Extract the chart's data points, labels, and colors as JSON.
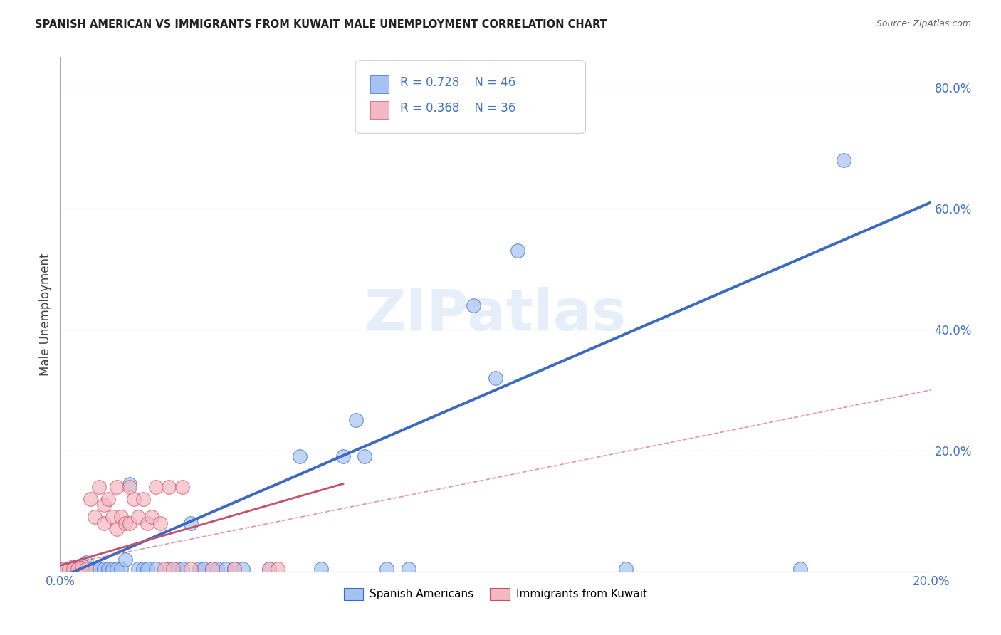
{
  "title": "SPANISH AMERICAN VS IMMIGRANTS FROM KUWAIT MALE UNEMPLOYMENT CORRELATION CHART",
  "source": "Source: ZipAtlas.com",
  "ylabel": "Male Unemployment",
  "xlim": [
    0.0,
    0.2
  ],
  "ylim": [
    0.0,
    0.85
  ],
  "xticks": [
    0.0,
    0.05,
    0.1,
    0.15,
    0.2
  ],
  "xtick_labels": [
    "0.0%",
    "",
    "",
    "",
    "20.0%"
  ],
  "yticks": [
    0.0,
    0.2,
    0.4,
    0.6,
    0.8
  ],
  "ytick_labels": [
    "",
    "20.0%",
    "40.0%",
    "60.0%",
    "80.0%"
  ],
  "blue_color": "#a4c2f4",
  "pink_color": "#f4b8c1",
  "trend_blue": "#3c6abf",
  "trend_pink": "#c9506a",
  "axis_label_color": "#4472c4",
  "legend_R_blue": "0.728",
  "legend_N_blue": "46",
  "legend_R_pink": "0.368",
  "legend_N_pink": "36",
  "watermark": "ZIPatlas",
  "blue_scatter": [
    [
      0.001,
      0.005
    ],
    [
      0.002,
      0.005
    ],
    [
      0.003,
      0.008
    ],
    [
      0.004,
      0.003
    ],
    [
      0.005,
      0.01
    ],
    [
      0.005,
      0.005
    ],
    [
      0.006,
      0.015
    ],
    [
      0.007,
      0.005
    ],
    [
      0.008,
      0.005
    ],
    [
      0.009,
      0.005
    ],
    [
      0.01,
      0.005
    ],
    [
      0.011,
      0.005
    ],
    [
      0.012,
      0.005
    ],
    [
      0.013,
      0.005
    ],
    [
      0.014,
      0.005
    ],
    [
      0.015,
      0.02
    ],
    [
      0.016,
      0.145
    ],
    [
      0.018,
      0.005
    ],
    [
      0.019,
      0.005
    ],
    [
      0.02,
      0.005
    ],
    [
      0.022,
      0.005
    ],
    [
      0.025,
      0.005
    ],
    [
      0.027,
      0.005
    ],
    [
      0.028,
      0.005
    ],
    [
      0.03,
      0.08
    ],
    [
      0.032,
      0.005
    ],
    [
      0.033,
      0.005
    ],
    [
      0.035,
      0.005
    ],
    [
      0.036,
      0.005
    ],
    [
      0.038,
      0.005
    ],
    [
      0.04,
      0.005
    ],
    [
      0.042,
      0.005
    ],
    [
      0.048,
      0.005
    ],
    [
      0.055,
      0.19
    ],
    [
      0.06,
      0.005
    ],
    [
      0.065,
      0.19
    ],
    [
      0.068,
      0.25
    ],
    [
      0.07,
      0.19
    ],
    [
      0.075,
      0.005
    ],
    [
      0.08,
      0.005
    ],
    [
      0.095,
      0.44
    ],
    [
      0.1,
      0.32
    ],
    [
      0.105,
      0.53
    ],
    [
      0.13,
      0.005
    ],
    [
      0.17,
      0.005
    ],
    [
      0.18,
      0.68
    ]
  ],
  "pink_scatter": [
    [
      0.001,
      0.005
    ],
    [
      0.002,
      0.005
    ],
    [
      0.003,
      0.005
    ],
    [
      0.004,
      0.005
    ],
    [
      0.005,
      0.005
    ],
    [
      0.005,
      0.01
    ],
    [
      0.006,
      0.005
    ],
    [
      0.007,
      0.12
    ],
    [
      0.008,
      0.09
    ],
    [
      0.009,
      0.14
    ],
    [
      0.01,
      0.11
    ],
    [
      0.01,
      0.08
    ],
    [
      0.011,
      0.12
    ],
    [
      0.012,
      0.09
    ],
    [
      0.013,
      0.14
    ],
    [
      0.013,
      0.07
    ],
    [
      0.014,
      0.09
    ],
    [
      0.015,
      0.08
    ],
    [
      0.016,
      0.14
    ],
    [
      0.016,
      0.08
    ],
    [
      0.017,
      0.12
    ],
    [
      0.018,
      0.09
    ],
    [
      0.019,
      0.12
    ],
    [
      0.02,
      0.08
    ],
    [
      0.021,
      0.09
    ],
    [
      0.022,
      0.14
    ],
    [
      0.023,
      0.08
    ],
    [
      0.024,
      0.005
    ],
    [
      0.025,
      0.14
    ],
    [
      0.026,
      0.005
    ],
    [
      0.028,
      0.14
    ],
    [
      0.03,
      0.005
    ],
    [
      0.035,
      0.005
    ],
    [
      0.04,
      0.005
    ],
    [
      0.048,
      0.005
    ],
    [
      0.05,
      0.005
    ]
  ],
  "blue_trendline": [
    [
      0.0,
      -0.01
    ],
    [
      0.2,
      0.61
    ]
  ],
  "pink_trendline_solid": [
    [
      0.0,
      0.01
    ],
    [
      0.065,
      0.145
    ]
  ],
  "pink_trendline_dashed": [
    [
      0.0,
      0.01
    ],
    [
      0.2,
      0.3
    ]
  ]
}
